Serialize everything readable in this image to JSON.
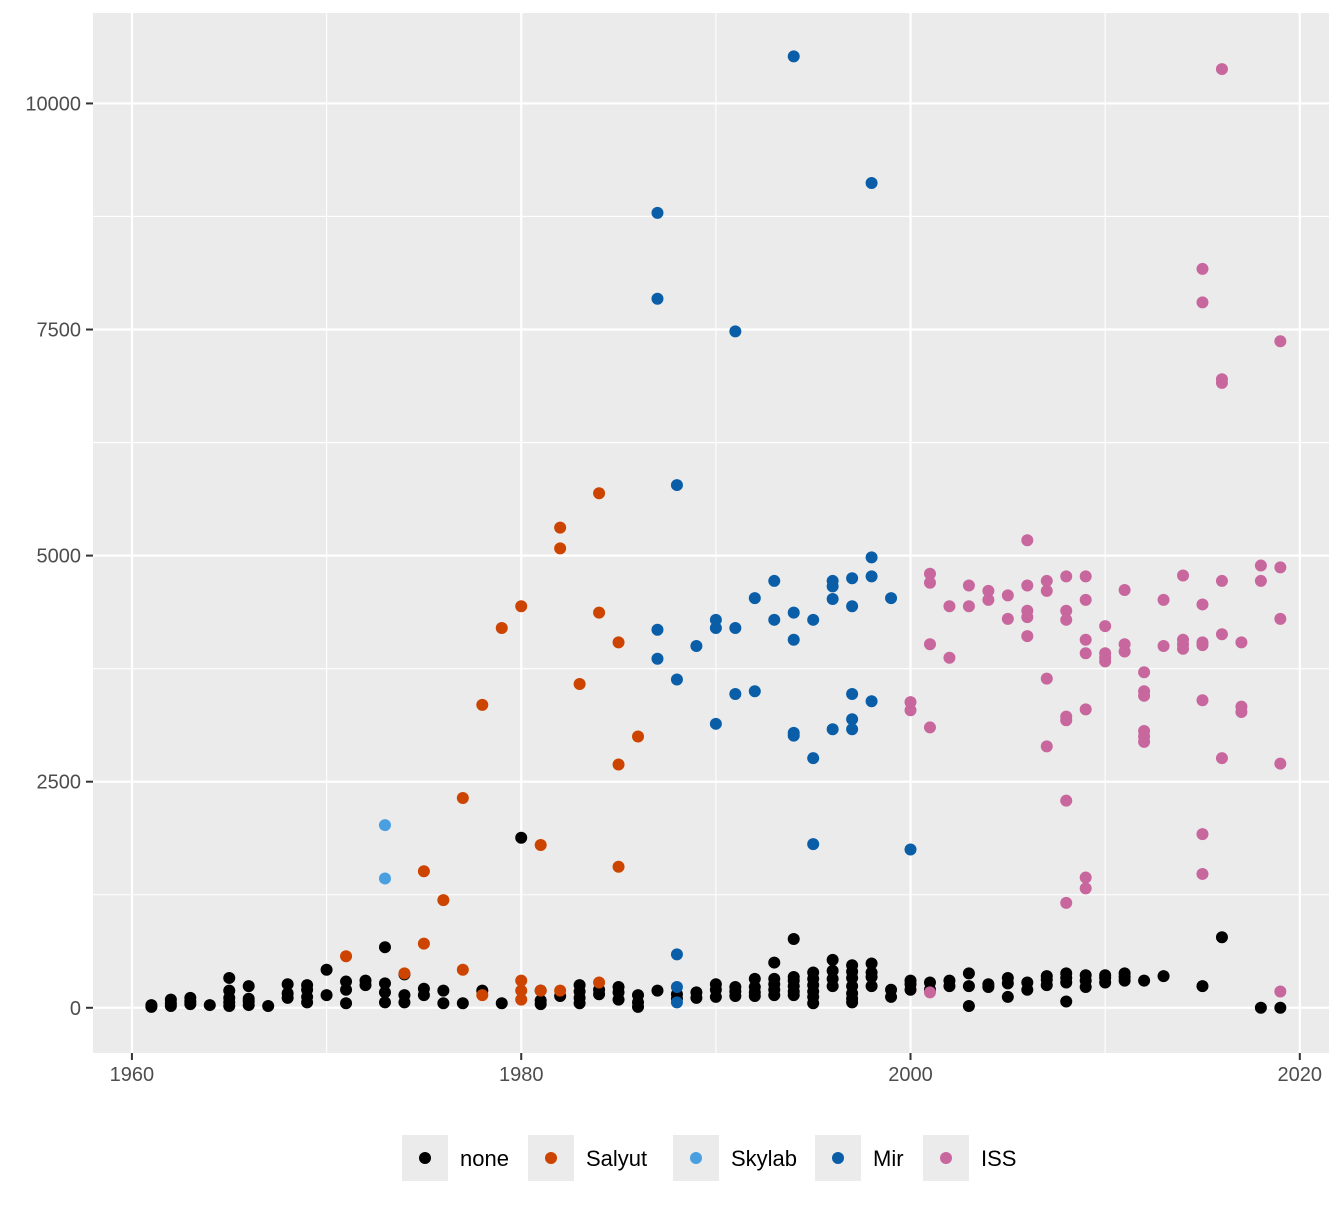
{
  "chart_data": {
    "type": "scatter",
    "title": "",
    "xlabel": "",
    "ylabel": "",
    "xlim": [
      1958,
      2021.5
    ],
    "ylim": [
      -500,
      11000
    ],
    "x_ticks": [
      1960,
      1980,
      2000,
      2020
    ],
    "y_ticks": [
      0,
      2500,
      5000,
      7500,
      10000
    ],
    "x_tick_labels": [
      "1960",
      "1980",
      "2000",
      "2020"
    ],
    "y_tick_labels": [
      "0",
      "2500",
      "5000",
      "7500",
      "10000"
    ],
    "grid": true,
    "legend_position": "bottom",
    "series": [
      {
        "name": "none",
        "color": "#000000",
        "points": [
          [
            1961,
            10
          ],
          [
            1961,
            30
          ],
          [
            1962,
            20
          ],
          [
            1962,
            50
          ],
          [
            1962,
            90
          ],
          [
            1963,
            40
          ],
          [
            1963,
            70
          ],
          [
            1963,
            110
          ],
          [
            1964,
            30
          ],
          [
            1965,
            20
          ],
          [
            1965,
            60
          ],
          [
            1965,
            110
          ],
          [
            1965,
            190
          ],
          [
            1965,
            330
          ],
          [
            1966,
            30
          ],
          [
            1966,
            70
          ],
          [
            1966,
            100
          ],
          [
            1966,
            240
          ],
          [
            1967,
            20
          ],
          [
            1968,
            110
          ],
          [
            1968,
            160
          ],
          [
            1968,
            260
          ],
          [
            1969,
            60
          ],
          [
            1969,
            120
          ],
          [
            1969,
            200
          ],
          [
            1969,
            250
          ],
          [
            1970,
            140
          ],
          [
            1970,
            420
          ],
          [
            1971,
            50
          ],
          [
            1971,
            200
          ],
          [
            1971,
            290
          ],
          [
            1972,
            250
          ],
          [
            1972,
            300
          ],
          [
            1973,
            60
          ],
          [
            1973,
            170
          ],
          [
            1973,
            270
          ],
          [
            1973,
            670
          ],
          [
            1974,
            60
          ],
          [
            1974,
            140
          ],
          [
            1974,
            370
          ],
          [
            1975,
            140
          ],
          [
            1975,
            210
          ],
          [
            1976,
            50
          ],
          [
            1976,
            190
          ],
          [
            1977,
            50
          ],
          [
            1978,
            190
          ],
          [
            1979,
            50
          ],
          [
            1980,
            1880
          ],
          [
            1981,
            40
          ],
          [
            1981,
            80
          ],
          [
            1981,
            190
          ],
          [
            1982,
            130
          ],
          [
            1983,
            50
          ],
          [
            1983,
            110
          ],
          [
            1983,
            180
          ],
          [
            1983,
            250
          ],
          [
            1984,
            150
          ],
          [
            1984,
            200
          ],
          [
            1985,
            90
          ],
          [
            1985,
            170
          ],
          [
            1985,
            230
          ],
          [
            1986,
            10
          ],
          [
            1986,
            60
          ],
          [
            1986,
            140
          ],
          [
            1987,
            190
          ],
          [
            1988,
            100
          ],
          [
            1988,
            150
          ],
          [
            1989,
            110
          ],
          [
            1989,
            170
          ],
          [
            1990,
            120
          ],
          [
            1990,
            200
          ],
          [
            1990,
            260
          ],
          [
            1991,
            130
          ],
          [
            1991,
            180
          ],
          [
            1991,
            230
          ],
          [
            1992,
            130
          ],
          [
            1992,
            170
          ],
          [
            1992,
            230
          ],
          [
            1992,
            320
          ],
          [
            1993,
            140
          ],
          [
            1993,
            200
          ],
          [
            1993,
            260
          ],
          [
            1993,
            320
          ],
          [
            1993,
            500
          ],
          [
            1994,
            140
          ],
          [
            1994,
            180
          ],
          [
            1994,
            240
          ],
          [
            1994,
            300
          ],
          [
            1994,
            340
          ],
          [
            1994,
            760
          ],
          [
            1995,
            50
          ],
          [
            1995,
            120
          ],
          [
            1995,
            180
          ],
          [
            1995,
            250
          ],
          [
            1995,
            320
          ],
          [
            1995,
            390
          ],
          [
            1996,
            240
          ],
          [
            1996,
            320
          ],
          [
            1996,
            410
          ],
          [
            1996,
            530
          ],
          [
            1997,
            60
          ],
          [
            1997,
            100
          ],
          [
            1997,
            160
          ],
          [
            1997,
            240
          ],
          [
            1997,
            330
          ],
          [
            1997,
            400
          ],
          [
            1997,
            470
          ],
          [
            1998,
            240
          ],
          [
            1998,
            340
          ],
          [
            1998,
            390
          ],
          [
            1998,
            490
          ],
          [
            1999,
            120
          ],
          [
            1999,
            200
          ],
          [
            2000,
            200
          ],
          [
            2000,
            260
          ],
          [
            2000,
            300
          ],
          [
            2001,
            200
          ],
          [
            2001,
            280
          ],
          [
            2002,
            240
          ],
          [
            2002,
            300
          ],
          [
            2003,
            20
          ],
          [
            2003,
            240
          ],
          [
            2003,
            380
          ],
          [
            2004,
            230
          ],
          [
            2004,
            260
          ],
          [
            2005,
            120
          ],
          [
            2005,
            270
          ],
          [
            2005,
            330
          ],
          [
            2006,
            200
          ],
          [
            2006,
            280
          ],
          [
            2007,
            250
          ],
          [
            2007,
            310
          ],
          [
            2007,
            350
          ],
          [
            2008,
            70
          ],
          [
            2008,
            280
          ],
          [
            2008,
            330
          ],
          [
            2008,
            380
          ],
          [
            2009,
            230
          ],
          [
            2009,
            300
          ],
          [
            2009,
            360
          ],
          [
            2010,
            280
          ],
          [
            2010,
            330
          ],
          [
            2010,
            360
          ],
          [
            2011,
            300
          ],
          [
            2011,
            340
          ],
          [
            2011,
            380
          ],
          [
            2012,
            300
          ],
          [
            2013,
            350
          ],
          [
            2015,
            240
          ],
          [
            2016,
            780
          ],
          [
            2018,
            0
          ],
          [
            2019,
            0
          ]
        ]
      },
      {
        "name": "Salyut",
        "color": "#cc4400",
        "points": [
          [
            1971,
            570
          ],
          [
            1974,
            380
          ],
          [
            1975,
            710
          ],
          [
            1975,
            1510
          ],
          [
            1976,
            1190
          ],
          [
            1977,
            420
          ],
          [
            1977,
            2320
          ],
          [
            1978,
            140
          ],
          [
            1978,
            3350
          ],
          [
            1979,
            4200
          ],
          [
            1980,
            90
          ],
          [
            1980,
            190
          ],
          [
            1980,
            300
          ],
          [
            1980,
            4440
          ],
          [
            1981,
            190
          ],
          [
            1981,
            1800
          ],
          [
            1982,
            190
          ],
          [
            1982,
            5080
          ],
          [
            1982,
            5310
          ],
          [
            1983,
            3580
          ],
          [
            1984,
            280
          ],
          [
            1984,
            4370
          ],
          [
            1984,
            5690
          ],
          [
            1985,
            1560
          ],
          [
            1985,
            2690
          ],
          [
            1985,
            4040
          ],
          [
            1986,
            3000
          ]
        ]
      },
      {
        "name": "Skylab",
        "color": "#4a9fe0",
        "points": [
          [
            1973,
            1430
          ],
          [
            1973,
            2020
          ]
        ]
      },
      {
        "name": "Mir",
        "color": "#0a5ea8",
        "points": [
          [
            1987,
            3860
          ],
          [
            1987,
            4180
          ],
          [
            1987,
            7840
          ],
          [
            1987,
            8790
          ],
          [
            1988,
            60
          ],
          [
            1988,
            230
          ],
          [
            1988,
            590
          ],
          [
            1988,
            3630
          ],
          [
            1988,
            5780
          ],
          [
            1989,
            4000
          ],
          [
            1990,
            3140
          ],
          [
            1990,
            4200
          ],
          [
            1990,
            4290
          ],
          [
            1991,
            3470
          ],
          [
            1991,
            4200
          ],
          [
            1991,
            7480
          ],
          [
            1992,
            3500
          ],
          [
            1992,
            4530
          ],
          [
            1993,
            4290
          ],
          [
            1993,
            4720
          ],
          [
            1994,
            3010
          ],
          [
            1994,
            3040
          ],
          [
            1994,
            4070
          ],
          [
            1994,
            4370
          ],
          [
            1994,
            10520
          ],
          [
            1995,
            1810
          ],
          [
            1995,
            2760
          ],
          [
            1995,
            4290
          ],
          [
            1996,
            3080
          ],
          [
            1996,
            4520
          ],
          [
            1996,
            4660
          ],
          [
            1996,
            4720
          ],
          [
            1997,
            3080
          ],
          [
            1997,
            3190
          ],
          [
            1997,
            3470
          ],
          [
            1997,
            4440
          ],
          [
            1997,
            4750
          ],
          [
            1998,
            3390
          ],
          [
            1998,
            4770
          ],
          [
            1998,
            4980
          ],
          [
            1998,
            9120
          ],
          [
            1999,
            4530
          ],
          [
            2000,
            1750
          ]
        ]
      },
      {
        "name": "ISS",
        "color": "#c8669e",
        "points": [
          [
            2000,
            3290
          ],
          [
            2000,
            3380
          ],
          [
            2001,
            170
          ],
          [
            2001,
            3100
          ],
          [
            2001,
            4020
          ],
          [
            2001,
            4700
          ],
          [
            2001,
            4800
          ],
          [
            2002,
            3870
          ],
          [
            2002,
            4440
          ],
          [
            2003,
            4440
          ],
          [
            2003,
            4670
          ],
          [
            2004,
            4510
          ],
          [
            2004,
            4610
          ],
          [
            2005,
            4300
          ],
          [
            2005,
            4560
          ],
          [
            2006,
            4110
          ],
          [
            2006,
            4320
          ],
          [
            2006,
            4390
          ],
          [
            2006,
            4670
          ],
          [
            2006,
            5170
          ],
          [
            2007,
            2890
          ],
          [
            2007,
            3640
          ],
          [
            2007,
            4610
          ],
          [
            2007,
            4720
          ],
          [
            2008,
            1160
          ],
          [
            2008,
            2290
          ],
          [
            2008,
            3180
          ],
          [
            2008,
            3220
          ],
          [
            2008,
            4290
          ],
          [
            2008,
            4390
          ],
          [
            2008,
            4770
          ],
          [
            2009,
            1320
          ],
          [
            2009,
            1440
          ],
          [
            2009,
            3300
          ],
          [
            2009,
            3920
          ],
          [
            2009,
            4070
          ],
          [
            2009,
            4510
          ],
          [
            2009,
            4770
          ],
          [
            2010,
            3830
          ],
          [
            2010,
            3870
          ],
          [
            2010,
            3920
          ],
          [
            2010,
            4220
          ],
          [
            2011,
            3940
          ],
          [
            2011,
            4020
          ],
          [
            2011,
            4620
          ],
          [
            2012,
            2940
          ],
          [
            2012,
            3000
          ],
          [
            2012,
            3060
          ],
          [
            2012,
            3450
          ],
          [
            2012,
            3500
          ],
          [
            2012,
            3710
          ],
          [
            2013,
            4000
          ],
          [
            2013,
            4510
          ],
          [
            2014,
            3970
          ],
          [
            2014,
            4020
          ],
          [
            2014,
            4070
          ],
          [
            2014,
            4780
          ],
          [
            2015,
            1480
          ],
          [
            2015,
            1920
          ],
          [
            2015,
            3400
          ],
          [
            2015,
            4010
          ],
          [
            2015,
            4040
          ],
          [
            2015,
            4460
          ],
          [
            2015,
            7800
          ],
          [
            2015,
            8170
          ],
          [
            2016,
            2760
          ],
          [
            2016,
            4130
          ],
          [
            2016,
            4720
          ],
          [
            2016,
            6910
          ],
          [
            2016,
            6950
          ],
          [
            2016,
            10380
          ],
          [
            2017,
            3270
          ],
          [
            2017,
            3330
          ],
          [
            2017,
            4040
          ],
          [
            2018,
            4720
          ],
          [
            2018,
            4890
          ],
          [
            2019,
            180
          ],
          [
            2019,
            2700
          ],
          [
            2019,
            4300
          ],
          [
            2019,
            4870
          ],
          [
            2019,
            7370
          ]
        ]
      }
    ]
  }
}
